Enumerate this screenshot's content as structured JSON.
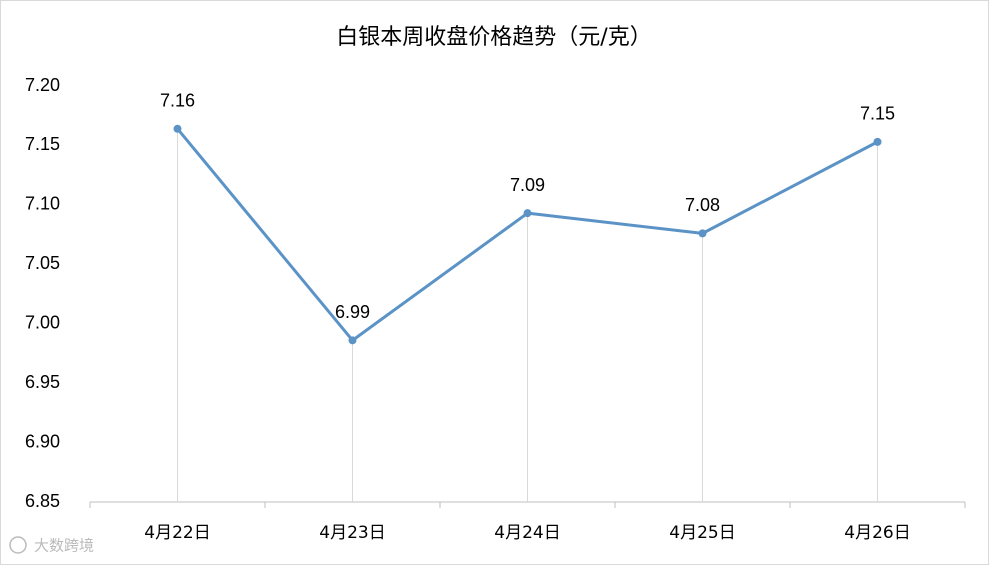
{
  "chart_data": {
    "type": "line",
    "title": "白银本周收盘价格趋势（元/克）",
    "categories": [
      "4月22日",
      "4月23日",
      "4月24日",
      "4月25日",
      "4月26日"
    ],
    "values": [
      7.164,
      6.986,
      7.093,
      7.076,
      7.153
    ],
    "value_labels": [
      "7.16",
      "6.99",
      "7.09",
      "7.08",
      "7.15"
    ],
    "color": "#5b93c7",
    "ylim": [
      6.85,
      7.2
    ],
    "yticks": [
      6.85,
      {
        "value": 6.9,
        "label": "6.90"
      },
      6.95,
      {
        "value": 7.0,
        "label": "7.00"
      },
      7.05,
      {
        "value": 7.1,
        "label": "7.10"
      },
      7.15,
      {
        "value": 7.2,
        "label": "7.20"
      }
    ],
    "drop_lines": true,
    "watermark": "大数跨境"
  }
}
